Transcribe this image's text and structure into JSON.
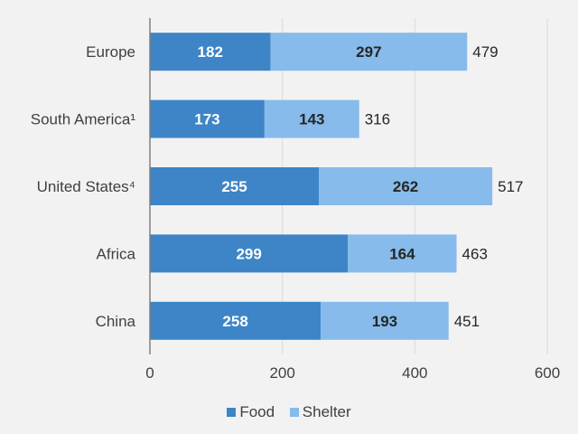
{
  "chart_data": {
    "type": "bar",
    "orientation": "horizontal",
    "stacked": true,
    "categories": [
      "Europe",
      "South America¹",
      "United States⁴",
      "Africa",
      "China"
    ],
    "series": [
      {
        "name": "Food",
        "color": "#3d85c6",
        "label_color": "#ffffff",
        "values": [
          182,
          173,
          255,
          299,
          258
        ]
      },
      {
        "name": "Shelter",
        "color": "#86bbeb",
        "label_color": "#262626",
        "values": [
          297,
          143,
          262,
          164,
          193
        ]
      }
    ],
    "totals": [
      479,
      316,
      517,
      463,
      451
    ],
    "xlim": [
      0,
      600
    ],
    "xticks": [
      "0",
      "200",
      "400",
      "600"
    ],
    "xtick_values": [
      0,
      200,
      400,
      600
    ],
    "grid": true,
    "legend_position": "bottom",
    "title": "",
    "xlabel": "",
    "ylabel": ""
  }
}
